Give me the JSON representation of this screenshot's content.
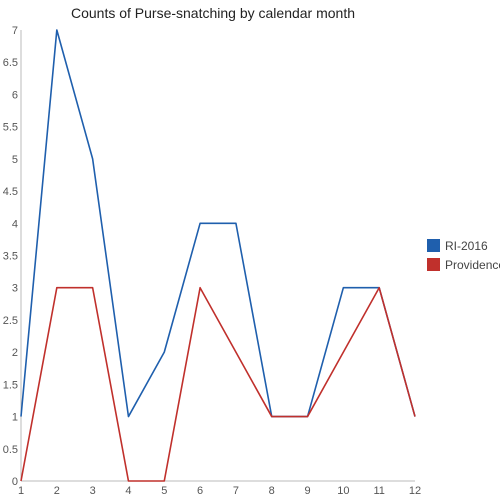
{
  "chart_data": {
    "type": "line",
    "title": "Counts of Purse-snatching by calendar month",
    "xlabel": "",
    "ylabel": "",
    "x": [
      1,
      2,
      3,
      4,
      5,
      6,
      7,
      8,
      9,
      10,
      11,
      12
    ],
    "x_tick_labels": [
      "1",
      "2",
      "3",
      "4",
      "5",
      "6",
      "7",
      "8",
      "9",
      "10",
      "11",
      "12"
    ],
    "y_tick_labels": [
      "0",
      "0.5",
      "1",
      "1.5",
      "2",
      "2.5",
      "3",
      "3.5",
      "4",
      "4.5",
      "5",
      "5.5",
      "6",
      "6.5",
      "7"
    ],
    "ylim": [
      0,
      7
    ],
    "xlim": [
      1,
      12
    ],
    "grid": false,
    "legend_position": "right",
    "series": [
      {
        "name": "RI-2016",
        "color": "#1f5fad",
        "values": [
          1,
          7,
          5,
          1,
          2,
          4,
          4,
          1,
          1,
          3,
          3,
          1
        ]
      },
      {
        "name": "Providence",
        "color": "#c0302c",
        "values": [
          0,
          3,
          3,
          0,
          0,
          3,
          2,
          1,
          1,
          2,
          3,
          1
        ]
      }
    ]
  }
}
